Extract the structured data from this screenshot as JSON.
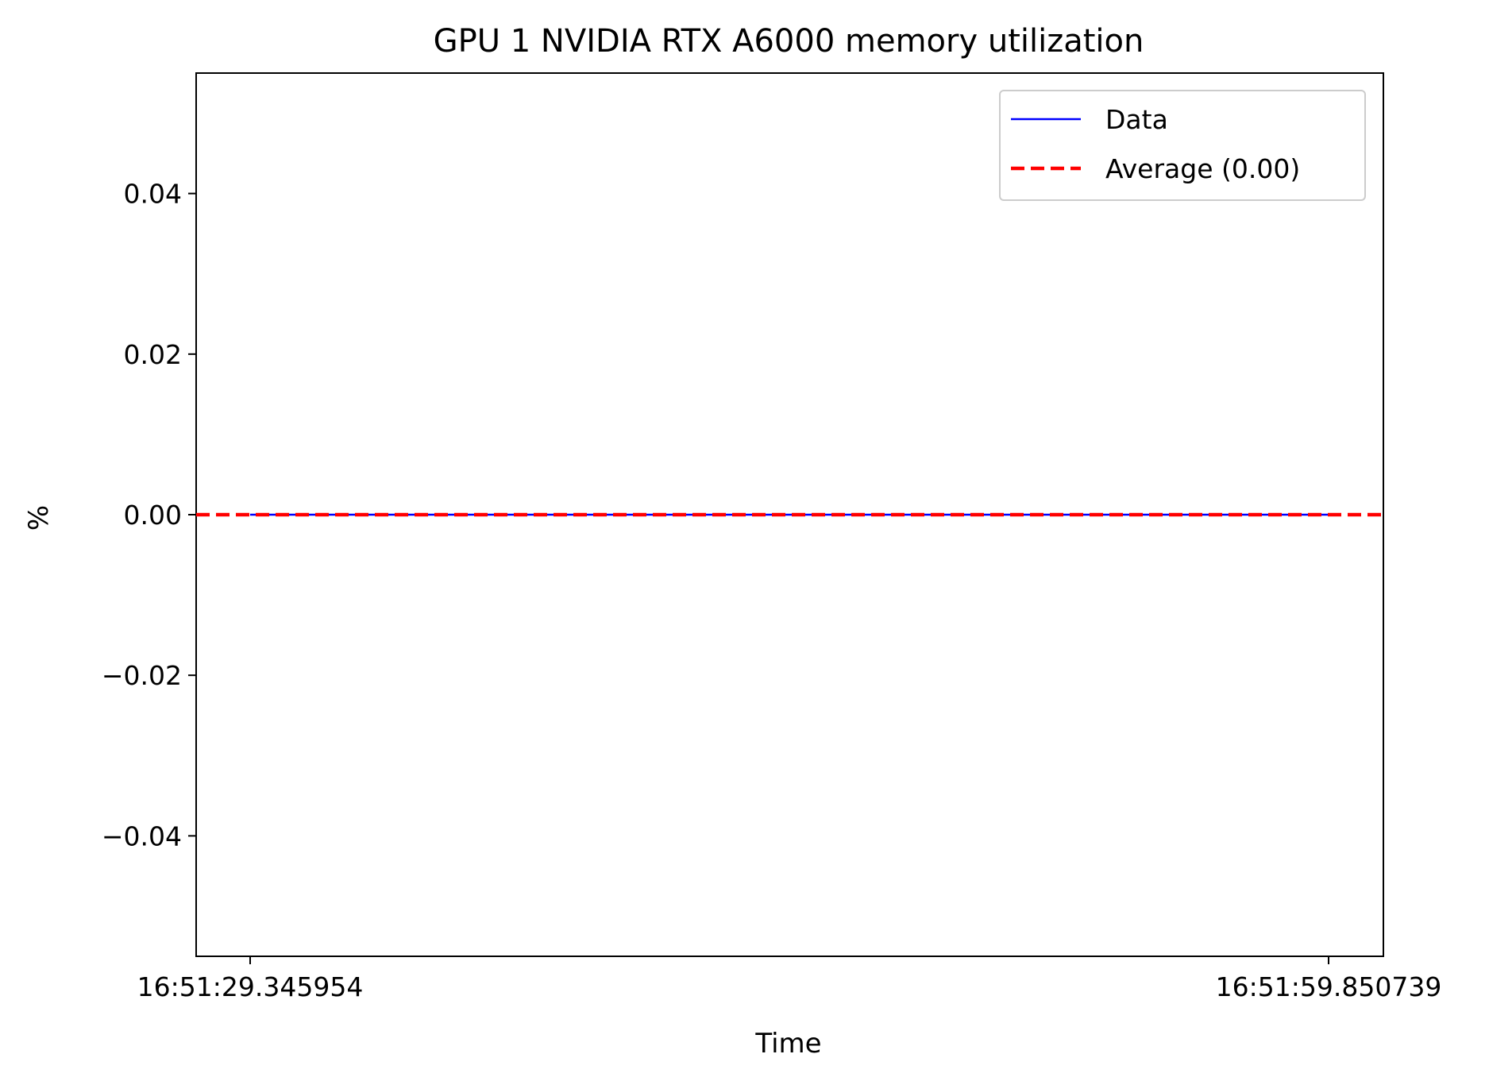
{
  "chart_data": {
    "type": "line",
    "title": "GPU 1 NVIDIA RTX A6000 memory utilization",
    "xlabel": "Time",
    "ylabel": "%",
    "x_ticks": [
      "16:51:29.345954",
      "16:51:59.850739"
    ],
    "x_range": [
      0,
      30.504785
    ],
    "x_ticks_values": [
      0,
      30.504785
    ],
    "ylim": [
      -0.055,
      0.055
    ],
    "y_ticks": [
      {
        "value": -0.04,
        "label": "−0.04"
      },
      {
        "value": -0.02,
        "label": "−0.02"
      },
      {
        "value": 0.0,
        "label": "0.00"
      },
      {
        "value": 0.02,
        "label": "0.02"
      },
      {
        "value": 0.04,
        "label": "0.04"
      }
    ],
    "grid": false,
    "legend_position": "top-right",
    "series": [
      {
        "name": "Data",
        "color": "#0000ff",
        "style": "solid",
        "x": [
          0,
          30.504785
        ],
        "values": [
          0.0,
          0.0
        ]
      },
      {
        "name": "Average (0.00)",
        "color": "#ff0000",
        "style": "dashed",
        "constant": 0.0
      }
    ]
  }
}
